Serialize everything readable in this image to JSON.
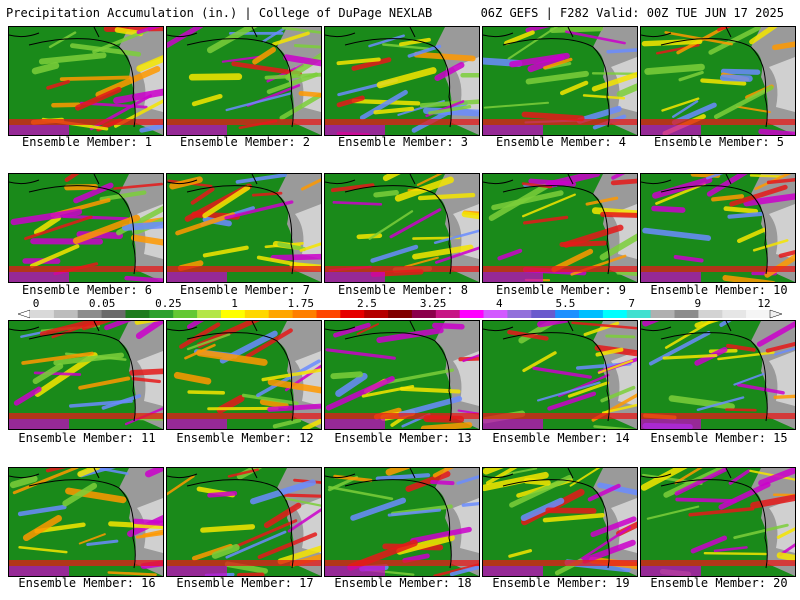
{
  "header": {
    "title": "Precipitation Accumulation (in.) | College of DuPage NEXLAB",
    "run_info": "06Z GEFS | F282 Valid: 00Z TUE JUN 17 2025"
  },
  "members": [
    {
      "label": "Ensemble Member: 1"
    },
    {
      "label": "Ensemble Member: 2"
    },
    {
      "label": "Ensemble Member: 3"
    },
    {
      "label": "Ensemble Member: 4"
    },
    {
      "label": "Ensemble Member: 5"
    },
    {
      "label": "Ensemble Member: 6"
    },
    {
      "label": "Ensemble Member: 7"
    },
    {
      "label": "Ensemble Member: 8"
    },
    {
      "label": "Ensemble Member: 9"
    },
    {
      "label": "Ensemble Member: 10"
    },
    {
      "label": "Ensemble Member: 11"
    },
    {
      "label": "Ensemble Member: 12"
    },
    {
      "label": "Ensemble Member: 13"
    },
    {
      "label": "Ensemble Member: 14"
    },
    {
      "label": "Ensemble Member: 15"
    },
    {
      "label": "Ensemble Member: 16"
    },
    {
      "label": "Ensemble Member: 17"
    },
    {
      "label": "Ensemble Member: 18"
    },
    {
      "label": "Ensemble Member: 19"
    },
    {
      "label": "Ensemble Member: 20"
    }
  ],
  "colorbar": {
    "tick_labels": [
      "0",
      "0.05",
      "0.25",
      "1",
      "1.75",
      "2.5",
      "3.25",
      "4",
      "5.5",
      "7",
      "9",
      "12"
    ],
    "colors": [
      "#d9d9d9",
      "#bdbdbd",
      "#8c8c8c",
      "#6b6b6b",
      "#1e7b1e",
      "#2ca02c",
      "#64c832",
      "#b4e646",
      "#ffff00",
      "#ffd700",
      "#ffa500",
      "#ff7f00",
      "#ff4500",
      "#e60000",
      "#b40000",
      "#800000",
      "#8b004b",
      "#c71585",
      "#ff00ff",
      "#d25aff",
      "#9370db",
      "#6a5acd",
      "#1e90ff",
      "#00bfff",
      "#00ffff",
      "#40e0d0",
      "#b0b0b0",
      "#8c8c8c",
      "#d3d3d3",
      "#e6e6e6",
      "#f5f5f5"
    ]
  },
  "map_palette": {
    "ocean": "#1a8a1a",
    "land_dry": "#9a9a9a",
    "land_light": "#d0d0d0",
    "light_green": "#7ccf3a",
    "yellow": "#f5e600",
    "orange": "#ff9900",
    "red": "#e61919",
    "magenta": "#cc00cc",
    "blue": "#6a8cff",
    "coastline": "#000000"
  }
}
